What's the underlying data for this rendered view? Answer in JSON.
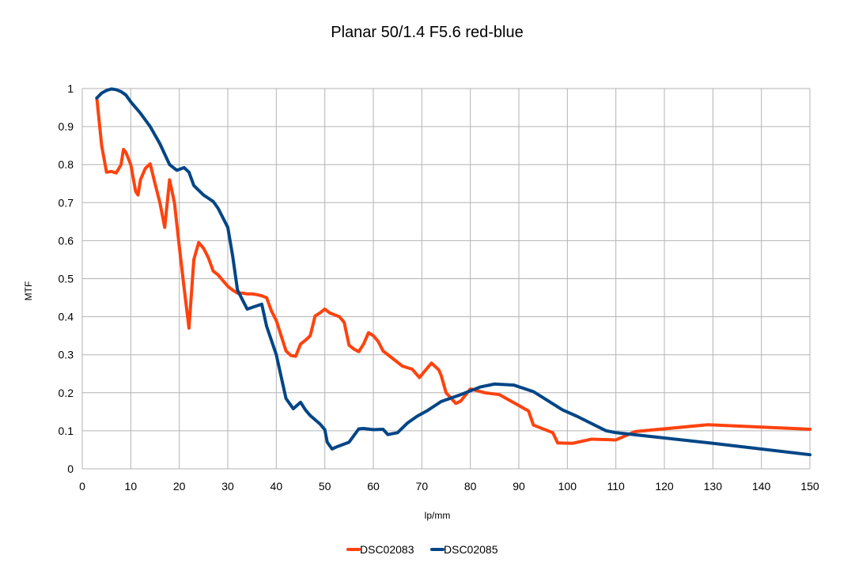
{
  "chart_data": {
    "type": "line",
    "title": "Planar 50/1.4 F5.6 red-blue",
    "xlabel": "lp/mm",
    "ylabel": "MTF",
    "xlim": [
      0,
      150
    ],
    "ylim": [
      0,
      1
    ],
    "x_ticks": [
      0,
      10,
      20,
      30,
      40,
      50,
      60,
      70,
      80,
      90,
      100,
      110,
      120,
      130,
      140,
      150
    ],
    "y_ticks": [
      0,
      0.1,
      0.2,
      0.3,
      0.4,
      0.5,
      0.6,
      0.7,
      0.8,
      0.9,
      1
    ],
    "x_tick_labels": [
      "0",
      "10",
      "20",
      "30",
      "40",
      "50",
      "60",
      "70",
      "80",
      "90",
      "100",
      "110",
      "120",
      "130",
      "140",
      "150"
    ],
    "y_tick_labels": [
      "0",
      "0.1",
      "0.2",
      "0.3",
      "0.4",
      "0.5",
      "0.6",
      "0.7",
      "0.8",
      "0.9",
      "1"
    ],
    "grid": true,
    "legend_position": "bottom",
    "series": [
      {
        "name": "DSC02083",
        "color": "#ff420e",
        "points": [
          [
            3,
            0.975
          ],
          [
            4,
            0.85
          ],
          [
            5,
            0.78
          ],
          [
            6,
            0.782
          ],
          [
            7,
            0.778
          ],
          [
            8,
            0.8
          ],
          [
            8.5,
            0.84
          ],
          [
            9,
            0.832
          ],
          [
            10,
            0.8
          ],
          [
            11,
            0.73
          ],
          [
            11.5,
            0.72
          ],
          [
            12,
            0.76
          ],
          [
            13,
            0.79
          ],
          [
            14,
            0.802
          ],
          [
            15,
            0.75
          ],
          [
            16,
            0.7
          ],
          [
            17,
            0.635
          ],
          [
            18,
            0.76
          ],
          [
            19,
            0.7
          ],
          [
            20,
            0.585
          ],
          [
            21,
            0.475
          ],
          [
            22,
            0.37
          ],
          [
            23,
            0.55
          ],
          [
            24,
            0.595
          ],
          [
            25,
            0.58
          ],
          [
            26,
            0.555
          ],
          [
            27,
            0.52
          ],
          [
            28,
            0.51
          ],
          [
            29,
            0.495
          ],
          [
            30,
            0.48
          ],
          [
            31,
            0.47
          ],
          [
            32,
            0.462
          ],
          [
            33,
            0.462
          ],
          [
            34,
            0.46
          ],
          [
            35,
            0.46
          ],
          [
            36,
            0.458
          ],
          [
            37,
            0.455
          ],
          [
            38,
            0.45
          ],
          [
            39,
            0.415
          ],
          [
            40,
            0.39
          ],
          [
            41,
            0.35
          ],
          [
            42,
            0.31
          ],
          [
            43,
            0.298
          ],
          [
            44,
            0.296
          ],
          [
            45,
            0.328
          ],
          [
            46,
            0.338
          ],
          [
            47,
            0.35
          ],
          [
            48,
            0.402
          ],
          [
            49,
            0.41
          ],
          [
            50,
            0.42
          ],
          [
            51,
            0.41
          ],
          [
            52,
            0.405
          ],
          [
            53,
            0.4
          ],
          [
            54,
            0.385
          ],
          [
            55,
            0.325
          ],
          [
            56,
            0.315
          ],
          [
            57,
            0.308
          ],
          [
            58,
            0.328
          ],
          [
            59,
            0.358
          ],
          [
            60,
            0.35
          ],
          [
            61,
            0.335
          ],
          [
            62,
            0.31
          ],
          [
            64,
            0.29
          ],
          [
            66,
            0.27
          ],
          [
            68,
            0.262
          ],
          [
            69.5,
            0.24
          ],
          [
            71,
            0.263
          ],
          [
            72,
            0.278
          ],
          [
            73.5,
            0.26
          ],
          [
            74,
            0.245
          ],
          [
            75,
            0.2
          ],
          [
            77,
            0.172
          ],
          [
            78,
            0.178
          ],
          [
            80,
            0.21
          ],
          [
            83,
            0.2
          ],
          [
            86,
            0.195
          ],
          [
            92,
            0.152
          ],
          [
            93,
            0.115
          ],
          [
            97,
            0.095
          ],
          [
            98,
            0.068
          ],
          [
            101,
            0.067
          ],
          [
            105,
            0.078
          ],
          [
            110,
            0.076
          ],
          [
            114,
            0.098
          ],
          [
            129,
            0.116
          ],
          [
            150,
            0.104
          ]
        ]
      },
      {
        "name": "DSC02085",
        "color": "#004586",
        "points": [
          [
            3,
            0.975
          ],
          [
            4,
            0.988
          ],
          [
            5,
            0.995
          ],
          [
            6,
            0.999
          ],
          [
            7,
            0.997
          ],
          [
            8,
            0.992
          ],
          [
            9,
            0.983
          ],
          [
            10,
            0.965
          ],
          [
            12,
            0.935
          ],
          [
            14,
            0.9
          ],
          [
            16,
            0.855
          ],
          [
            18,
            0.8
          ],
          [
            19.5,
            0.785
          ],
          [
            21,
            0.792
          ],
          [
            22,
            0.78
          ],
          [
            23,
            0.745
          ],
          [
            25,
            0.72
          ],
          [
            27,
            0.703
          ],
          [
            28,
            0.685
          ],
          [
            30,
            0.635
          ],
          [
            31,
            0.56
          ],
          [
            32,
            0.47
          ],
          [
            34,
            0.42
          ],
          [
            37,
            0.433
          ],
          [
            38,
            0.375
          ],
          [
            40,
            0.3
          ],
          [
            42,
            0.185
          ],
          [
            43.5,
            0.158
          ],
          [
            45,
            0.175
          ],
          [
            46,
            0.155
          ],
          [
            47,
            0.14
          ],
          [
            49,
            0.118
          ],
          [
            50,
            0.103
          ],
          [
            50.5,
            0.07
          ],
          [
            51.5,
            0.052
          ],
          [
            52.5,
            0.058
          ],
          [
            55,
            0.07
          ],
          [
            57,
            0.105
          ],
          [
            58,
            0.106
          ],
          [
            60,
            0.103
          ],
          [
            62,
            0.104
          ],
          [
            63,
            0.09
          ],
          [
            65,
            0.095
          ],
          [
            67,
            0.12
          ],
          [
            69,
            0.138
          ],
          [
            71,
            0.152
          ],
          [
            74,
            0.177
          ],
          [
            78,
            0.195
          ],
          [
            82,
            0.215
          ],
          [
            85,
            0.223
          ],
          [
            89,
            0.22
          ],
          [
            93,
            0.203
          ],
          [
            99,
            0.155
          ],
          [
            102,
            0.138
          ],
          [
            108,
            0.1
          ],
          [
            110,
            0.095
          ],
          [
            130,
            0.067
          ],
          [
            150,
            0.037
          ]
        ]
      }
    ]
  }
}
